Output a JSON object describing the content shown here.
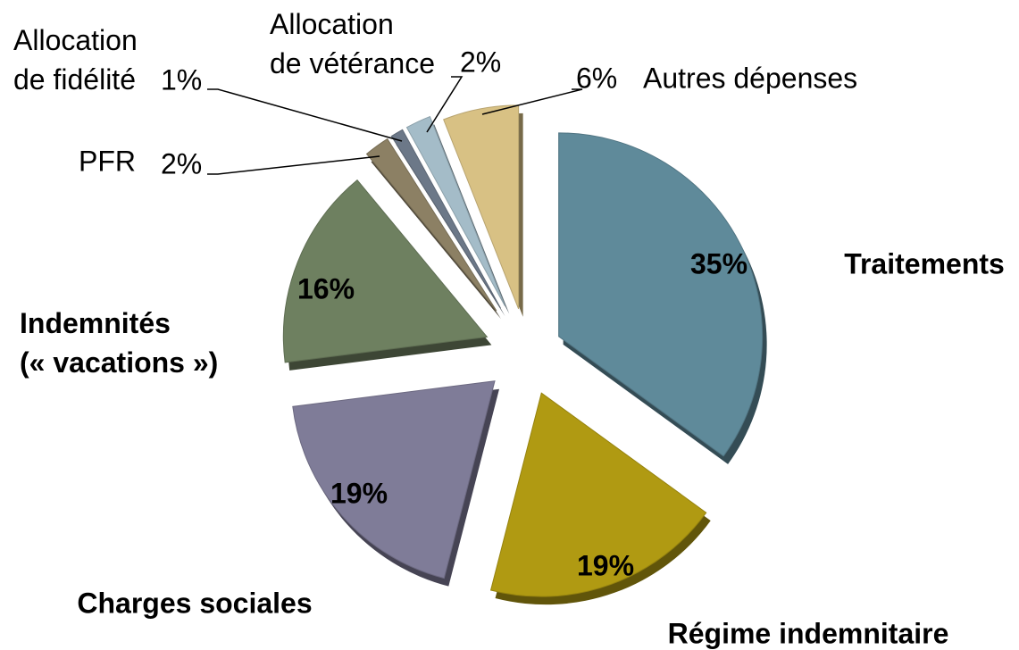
{
  "chart_data": {
    "type": "pie",
    "categories": [
      "Traitements",
      "Régime indemnitaire",
      "Charges sociales",
      "Indemnités\n(« vacations »)",
      "PFR",
      "Allocation\nde fidélité",
      "Allocation\nde vétérance",
      "Autres dépenses"
    ],
    "values": [
      35,
      19,
      19,
      16,
      2,
      1,
      2,
      6
    ],
    "value_labels": [
      "35%",
      "19%",
      "19%",
      "16%",
      "2%",
      "1%",
      "2%",
      "6%"
    ],
    "colors": [
      "#5f8a9a",
      "#b09a12",
      "#7f7c98",
      "#6e8060",
      "#8c8064",
      "#6c7888",
      "#a4bcc8",
      "#d8c184"
    ]
  }
}
